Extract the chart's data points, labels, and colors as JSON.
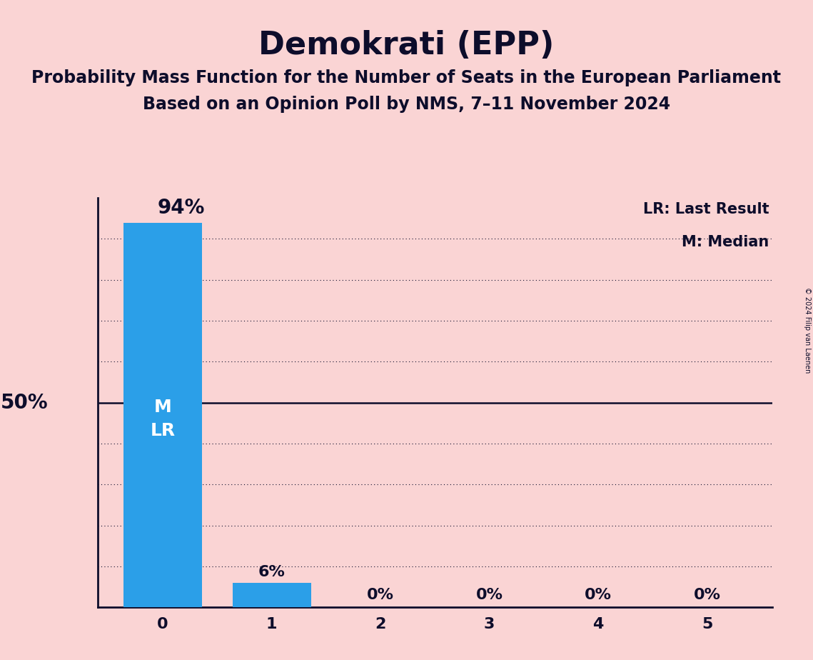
{
  "title": "Demokrati (EPP)",
  "subtitle1": "Probability Mass Function for the Number of Seats in the European Parliament",
  "subtitle2": "Based on an Opinion Poll by NMS, 7–11 November 2024",
  "copyright": "© 2024 Filip van Laenen",
  "categories": [
    0,
    1,
    2,
    3,
    4,
    5
  ],
  "values": [
    0.94,
    0.06,
    0.0,
    0.0,
    0.0,
    0.0
  ],
  "bar_labels": [
    "94%",
    "6%",
    "0%",
    "0%",
    "0%",
    "0%"
  ],
  "bar_color": "#2B9FE8",
  "background_color": "#FAD4D4",
  "ylim": [
    0,
    1.0
  ],
  "yticks": [
    0.0,
    0.1,
    0.2,
    0.3,
    0.4,
    0.5,
    0.6,
    0.7,
    0.8,
    0.9,
    1.0
  ],
  "solid_ytick": 0.5,
  "ylabel_50_text": "50%",
  "median_seat": 0,
  "last_result_seat": 0,
  "legend_lr": "LR: Last Result",
  "legend_m": "M: Median",
  "bar_label_color_outside": "#0D0D2B",
  "bar_label_color_inside": "#FFFFFF",
  "title_fontsize": 32,
  "subtitle_fontsize": 17,
  "label_fontsize": 16,
  "tick_fontsize": 16,
  "bar_width": 0.72,
  "text_color": "#0D0D2B"
}
